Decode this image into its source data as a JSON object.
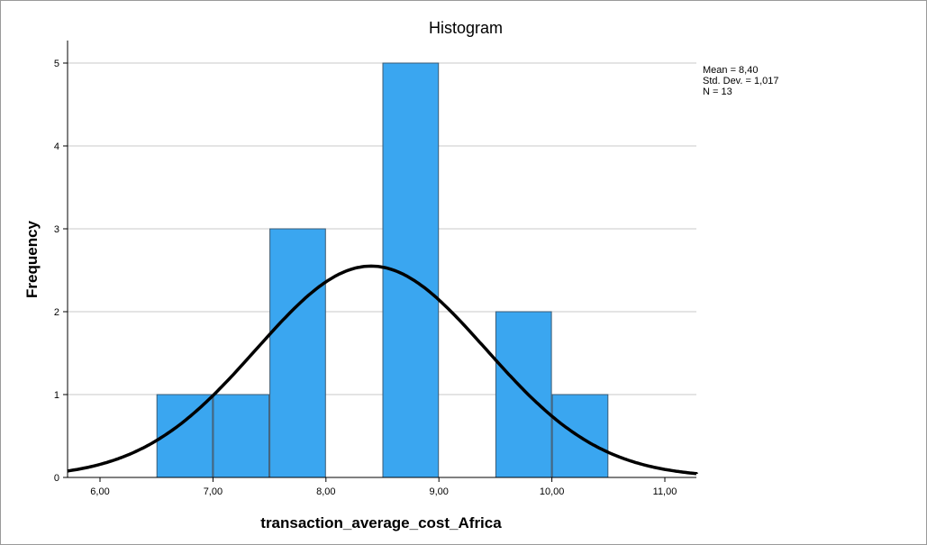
{
  "chart_data": {
    "type": "bar",
    "title": "Histogram",
    "xlabel": "transaction_average_cost_Africa",
    "ylabel": "Frequency",
    "xlim": [
      5.7,
      11.3
    ],
    "ylim": [
      0,
      5.3
    ],
    "x_ticks": [
      6,
      7,
      8,
      9,
      10,
      11
    ],
    "x_tick_labels": [
      "6,00",
      "7,00",
      "8,00",
      "9,00",
      "10,00",
      "11,00"
    ],
    "y_ticks": [
      0,
      1,
      2,
      3,
      4,
      5
    ],
    "y_tick_labels": [
      "0",
      "1",
      "2",
      "3",
      "4",
      "5"
    ],
    "bins": [
      {
        "start": 6.5,
        "end": 7.0,
        "count": 1
      },
      {
        "start": 7.0,
        "end": 7.5,
        "count": 1
      },
      {
        "start": 7.5,
        "end": 8.0,
        "count": 3
      },
      {
        "start": 8.0,
        "end": 8.5,
        "count": 0
      },
      {
        "start": 8.5,
        "end": 9.0,
        "count": 5
      },
      {
        "start": 9.0,
        "end": 9.5,
        "count": 0
      },
      {
        "start": 9.5,
        "end": 10.0,
        "count": 2
      },
      {
        "start": 10.0,
        "end": 10.5,
        "count": 1
      }
    ],
    "normal_curve": {
      "mean": 8.4,
      "std": 1.017,
      "n": 13,
      "bin_width": 0.5
    },
    "stats_lines": [
      "Mean = 8,40",
      "Std. Dev. = 1,017",
      "N = 13"
    ],
    "grid": "horizontal",
    "bar_color": "#3aa6f0",
    "bar_edge_color": "#3c5b73",
    "curve_color": "#000000"
  }
}
